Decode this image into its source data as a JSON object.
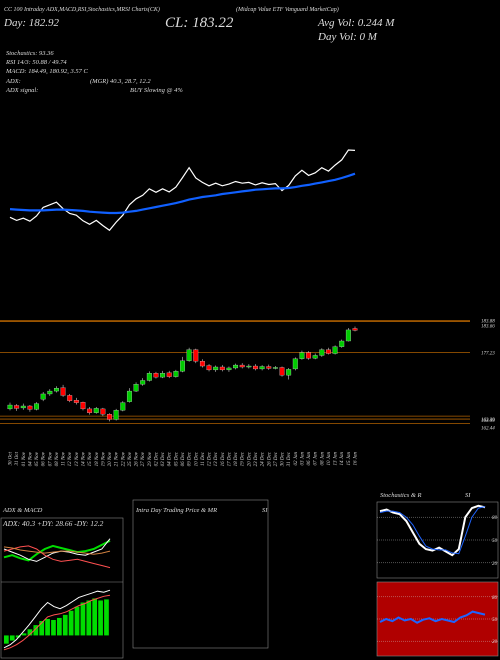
{
  "header": {
    "line1": "CC 100 Intraday ADX,MACD,RSI,Stochastics,MRSI Charts(CK)",
    "line1b": "(Midcap Value ETF Vanguard MarketCap)",
    "day": "Day: 182.92",
    "close": "CL: 183.22",
    "avg_vol": "Avg Vol: 0.244 M",
    "day_vol": "Day Vol: 0  M",
    "stoch": "Stochastics: 93.36",
    "rsi": "RSI 14/3: 50.88 / 49.74",
    "macd": "MACD: 184.49, 180.92, 3.57 C",
    "adx_label": "ADX:",
    "adx_values": "(MGR) 40.3, 28.7, 12.2",
    "adx_signal_label": "ADX  signal:",
    "adx_signal": "BUY Slowing @ 4%"
  },
  "intraday": {
    "title": "Intra  Day Trading Price  & MR",
    "title2": "SI"
  },
  "chart_data": [
    {
      "type": "candlestick",
      "categories": [
        "30 Oct",
        "31 Oct",
        "01 Nov",
        "04 Nov",
        "05 Nov",
        "06 Nov",
        "07 Nov",
        "08 Nov",
        "11 Nov",
        "12 Nov",
        "13 Nov",
        "14 Nov",
        "15 Nov",
        "18 Nov",
        "19 Nov",
        "20 Nov",
        "21 Nov",
        "22 Nov",
        "25 Nov",
        "26 Nov",
        "27 Nov",
        "29 Nov",
        "02 Dec",
        "03 Dec",
        "04 Dec",
        "05 Dec",
        "06 Dec",
        "09 Dec",
        "10 Dec",
        "11 Dec",
        "12 Dec",
        "13 Dec",
        "16 Dec",
        "17 Dec",
        "18 Dec",
        "19 Dec",
        "20 Dec",
        "23 Dec",
        "24 Dec",
        "26 Dec",
        "27 Dec",
        "30 Dec",
        "31 Dec",
        "02 Jan",
        "03 Jan",
        "06 Jan",
        "07 Jan",
        "08 Jan",
        "10 Jan",
        "13 Jan",
        "14 Jan",
        "15 Jan",
        "16 Jan"
      ],
      "open": [
        165.5,
        166.2,
        165.7,
        166.1,
        165.4,
        167.5,
        168.6,
        169.2,
        169.9,
        168.3,
        167.3,
        166.9,
        165.5,
        164.7,
        165.5,
        164.4,
        163.3,
        165.2,
        167.0,
        169.2,
        170.6,
        171.4,
        172.9,
        172.1,
        173.0,
        172.2,
        173.3,
        175.5,
        177.8,
        175.4,
        174.5,
        173.6,
        174.2,
        173.6,
        174.0,
        174.6,
        174.2,
        174.4,
        173.8,
        174.3,
        173.9,
        174.1,
        172.5,
        173.8,
        175.9,
        177.2,
        176.0,
        176.6,
        177.8,
        177.0,
        178.4,
        179.6,
        182.2
      ],
      "high": [
        166.8,
        166.5,
        166.6,
        166.3,
        166.9,
        169.0,
        169.6,
        170.2,
        170.5,
        168.6,
        167.8,
        167.0,
        165.9,
        165.9,
        165.7,
        164.6,
        165.5,
        167.1,
        169.8,
        171.0,
        171.9,
        173.3,
        173.2,
        173.4,
        173.4,
        173.6,
        176.3,
        178.2,
        178.0,
        175.8,
        174.8,
        174.5,
        174.6,
        174.3,
        174.9,
        175.0,
        174.8,
        174.8,
        174.6,
        174.7,
        174.4,
        174.3,
        174.0,
        176.2,
        177.6,
        177.5,
        177.0,
        178.1,
        178.2,
        178.7,
        179.9,
        182.3,
        182.6
      ],
      "low": [
        165.2,
        165.1,
        165.3,
        164.9,
        165.2,
        167.1,
        168.2,
        168.9,
        168.0,
        166.9,
        166.4,
        165.2,
        164.3,
        164.5,
        164.0,
        162.9,
        163.1,
        165.0,
        166.8,
        169.0,
        170.3,
        171.2,
        171.8,
        171.9,
        171.9,
        172.0,
        173.1,
        175.3,
        175.0,
        174.1,
        173.3,
        173.2,
        173.3,
        173.2,
        173.7,
        173.9,
        173.9,
        173.5,
        173.5,
        173.6,
        173.7,
        172.2,
        171.6,
        173.5,
        175.7,
        175.7,
        175.8,
        176.3,
        176.8,
        176.8,
        178.2,
        179.5,
        181.6
      ],
      "close": [
        166.3,
        165.6,
        166.1,
        165.4,
        166.6,
        168.6,
        169.2,
        169.8,
        168.3,
        167.2,
        166.8,
        165.5,
        164.7,
        165.6,
        164.4,
        163.3,
        165.2,
        166.8,
        169.2,
        170.6,
        171.4,
        172.9,
        172.1,
        172.9,
        172.2,
        173.3,
        175.5,
        177.8,
        175.4,
        174.4,
        173.6,
        174.2,
        173.6,
        174.0,
        174.6,
        174.2,
        174.4,
        173.8,
        174.3,
        173.9,
        174.1,
        172.5,
        173.7,
        175.9,
        177.2,
        176.0,
        176.6,
        177.8,
        177.0,
        178.4,
        179.6,
        181.9,
        181.8
      ],
      "ma": [
        168.2,
        168.1,
        168.0,
        167.9,
        167.9,
        167.9,
        168.0,
        168.1,
        168.1,
        168.0,
        167.9,
        167.8,
        167.6,
        167.5,
        167.4,
        167.3,
        167.3,
        167.4,
        167.6,
        167.8,
        168.1,
        168.4,
        168.7,
        169.0,
        169.3,
        169.6,
        170.0,
        170.4,
        170.7,
        171.0,
        171.2,
        171.4,
        171.7,
        171.9,
        172.1,
        172.3,
        172.5,
        172.7,
        172.8,
        172.9,
        173.0,
        173.0,
        173.1,
        173.3,
        173.6,
        173.8,
        174.1,
        174.4,
        174.7,
        175.0,
        175.4,
        175.9,
        176.4
      ],
      "up_color": "#00cc00",
      "down_color": "#ff0000",
      "line_color": "#ffffff",
      "ma_color": "#1060ff",
      "level_color": "#b06000",
      "ylim": [
        158,
        185
      ],
      "yticks": [
        183.88,
        183.66,
        177.23,
        163.99,
        163.39,
        162.44
      ]
    },
    {
      "type": "line",
      "title": "ADX  & MACD",
      "subtitle": "ADX: 40.3  +DY: 28.66  -DY: 12.2",
      "ylim": [
        0,
        60
      ],
      "series": [
        {
          "color": "#00dd00",
          "values": [
            22,
            24,
            21,
            19,
            25,
            30,
            33,
            31,
            29,
            27,
            28,
            30,
            34,
            38
          ]
        },
        {
          "color": "#ffffff",
          "values": [
            30,
            27,
            24,
            20,
            18,
            22,
            26,
            28,
            27,
            25,
            24,
            27,
            30,
            40
          ]
        },
        {
          "color": "#ff5050",
          "values": [
            28,
            30,
            32,
            33,
            30,
            24,
            20,
            18,
            19,
            20,
            18,
            16,
            14,
            12
          ]
        },
        {
          "color": "#d08040",
          "values": [
            32,
            31,
            29,
            28,
            27,
            26,
            27,
            28,
            28,
            27,
            26,
            25,
            26,
            28
          ]
        }
      ]
    },
    {
      "type": "bar",
      "ylim": [
        -2,
        5
      ],
      "color": "#00dd00",
      "values": [
        -0.8,
        -0.5,
        -0.2,
        0.2,
        0.6,
        1.0,
        1.4,
        1.6,
        1.5,
        1.7,
        2.0,
        2.4,
        2.8,
        3.2,
        3.4,
        3.6,
        3.4,
        3.5
      ],
      "series": [
        {
          "color": "#ffffff",
          "values": [
            -1.2,
            -0.9,
            -0.4,
            0.3,
            1.0,
            1.8,
            2.6,
            3.2,
            2.8,
            2.6,
            2.9,
            3.3,
            3.7,
            3.9,
            4.1,
            4.3,
            4.2,
            4.4
          ]
        },
        {
          "color": "#ff5050",
          "values": [
            -1.4,
            -1.2,
            -0.9,
            -0.5,
            0.0,
            0.6,
            1.2,
            1.8,
            2.0,
            2.1,
            2.3,
            2.6,
            2.9,
            3.1,
            3.4,
            3.6,
            3.8,
            3.9
          ]
        }
      ]
    },
    {
      "type": "line",
      "title": "Stochastics & R",
      "title2": "SI",
      "ylim": [
        0,
        100
      ],
      "yticks": [
        80,
        50,
        20
      ],
      "background": "#000000",
      "series": [
        {
          "color": "#ffffff",
          "values": [
            88,
            90,
            86,
            84,
            75,
            60,
            45,
            38,
            36,
            40,
            35,
            30,
            38,
            80,
            92,
            95,
            93
          ]
        },
        {
          "color": "#1e64ff",
          "values": [
            86,
            88,
            88,
            86,
            80,
            70,
            55,
            42,
            38,
            37,
            37,
            33,
            32,
            55,
            80,
            92,
            94
          ]
        }
      ]
    },
    {
      "type": "line",
      "ylim": [
        0,
        100
      ],
      "yticks": [
        80,
        50,
        20
      ],
      "background": "#b00000",
      "series": [
        {
          "color": "#1e64ff",
          "values": [
            46,
            50,
            47,
            52,
            48,
            50,
            45,
            49,
            51,
            47,
            50,
            48,
            46,
            52,
            55,
            60,
            58,
            56
          ]
        }
      ]
    }
  ]
}
